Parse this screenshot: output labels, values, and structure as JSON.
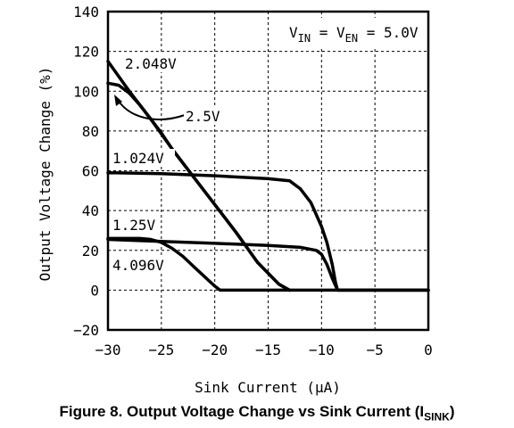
{
  "chart_data": {
    "type": "line",
    "title": "",
    "caption": {
      "text": "Figure 8. Output Voltage Change vs Sink Current (I",
      "sub": "SINK",
      "close": ")"
    },
    "xlabel": "Sink Current (μA)",
    "ylabel": "Output Voltage Change (%)",
    "xlim": [
      -30,
      0
    ],
    "ylim": [
      -20,
      140
    ],
    "xticks": [
      -30,
      -25,
      -20,
      -15,
      -10,
      -5,
      0
    ],
    "yticks": [
      -20,
      0,
      20,
      40,
      60,
      80,
      100,
      120,
      140
    ],
    "grid": true,
    "annotation": {
      "v1": "V",
      "v1_sub": "IN",
      "eq": " = V",
      "v2_sub": "EN",
      "rest": " = 5.0V"
    },
    "series": [
      {
        "name": "2.048V",
        "x": [
          -30,
          -28,
          -26,
          -24,
          -22,
          -20,
          -18,
          -16,
          -14,
          -13
        ],
        "y": [
          115,
          100,
          86,
          71,
          57,
          43,
          29,
          14,
          3,
          0
        ]
      },
      {
        "name": "2.5V",
        "x": [
          -30,
          -29,
          -28,
          -27,
          -26,
          -25,
          -24,
          -22,
          -20,
          -18,
          -16,
          -14,
          -13
        ],
        "y": [
          104,
          103,
          99,
          93,
          86,
          79,
          71,
          57,
          43,
          29,
          14,
          3,
          0
        ]
      },
      {
        "name": "1.024V",
        "x": [
          -30,
          -25,
          -20,
          -15,
          -13,
          -12,
          -11,
          -10,
          -9.5,
          -9,
          -8.7,
          -8.5,
          -8,
          -5,
          0
        ],
        "y": [
          59,
          58.5,
          57.5,
          56,
          55,
          51,
          44,
          32,
          24,
          13,
          4,
          0,
          0,
          0,
          0
        ]
      },
      {
        "name": "1.25V",
        "x": [
          -30,
          -25,
          -20,
          -15,
          -12,
          -10.5,
          -10,
          -9.5,
          -9,
          -8.5,
          -8,
          -5,
          0
        ],
        "y": [
          25.5,
          24.5,
          23.5,
          22.5,
          21.5,
          20,
          18,
          13,
          6,
          0,
          0,
          0,
          0
        ]
      },
      {
        "name": "4.096V",
        "x": [
          -30,
          -27,
          -26,
          -25,
          -24,
          -23,
          -22,
          -21,
          -20,
          -19.5,
          -15,
          -10,
          -5,
          0
        ],
        "y": [
          26,
          26,
          25.5,
          24,
          21,
          17,
          12,
          7,
          2,
          0,
          0,
          0,
          0,
          0
        ]
      }
    ]
  }
}
